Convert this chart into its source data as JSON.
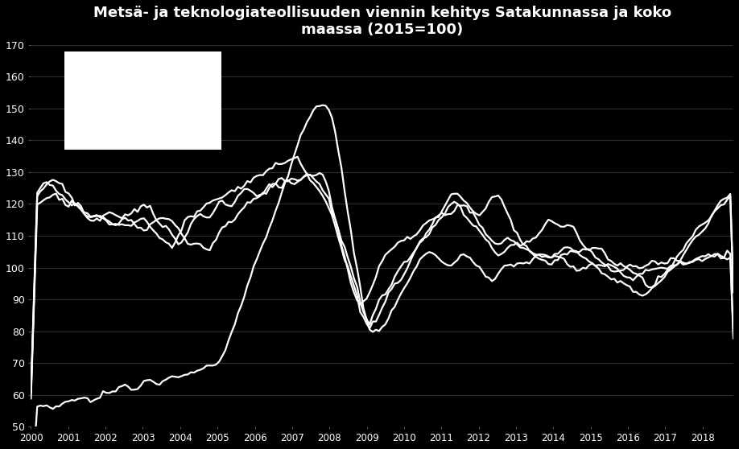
{
  "title": "Metsä- ja teknologiateollisuuden viennin kehitys Satakunnassa ja koko\nmaassa (2015=100)",
  "title_fontsize": 13,
  "background_color": "#000000",
  "text_color": "#ffffff",
  "grid_color": "#444444",
  "ylim": [
    50,
    170
  ],
  "yticks": [
    50,
    60,
    70,
    80,
    90,
    100,
    110,
    120,
    130,
    140,
    150,
    160,
    170
  ],
  "year_start": 2000.0,
  "year_end": 2018.83,
  "line_color": "#ffffff",
  "line_width": 1.6
}
